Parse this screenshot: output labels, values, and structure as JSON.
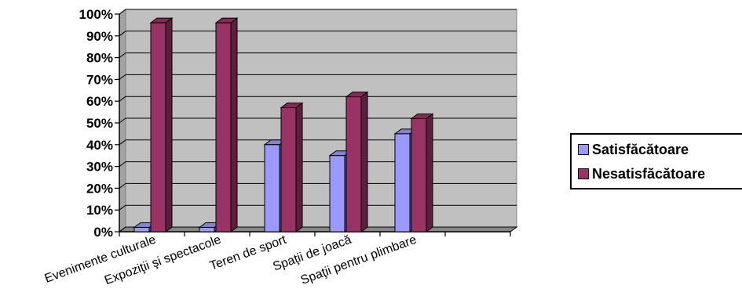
{
  "chart_data": {
    "type": "bar",
    "style": "3d-clustered-column",
    "categories": [
      "Evenimente culturale",
      "Expoziţii şi spectacole",
      "Teren de sport",
      "Spaţii de joacă",
      "Spaţii pentru plimbare",
      ""
    ],
    "series": [
      {
        "name": "Satisfăcătoare",
        "color": "#9999ff",
        "values": [
          2,
          2,
          40,
          35,
          45,
          null
        ]
      },
      {
        "name": "Nesatisfăcătoare",
        "color": "#993366",
        "values": [
          96,
          96,
          57,
          62,
          52,
          null
        ]
      }
    ],
    "yticks": [
      "0%",
      "10%",
      "20%",
      "30%",
      "40%",
      "50%",
      "60%",
      "70%",
      "80%",
      "90%",
      "100%"
    ],
    "ylim": [
      0,
      100
    ],
    "grid": true,
    "wall_color": "#c0c0c0",
    "legend_position": "right"
  }
}
